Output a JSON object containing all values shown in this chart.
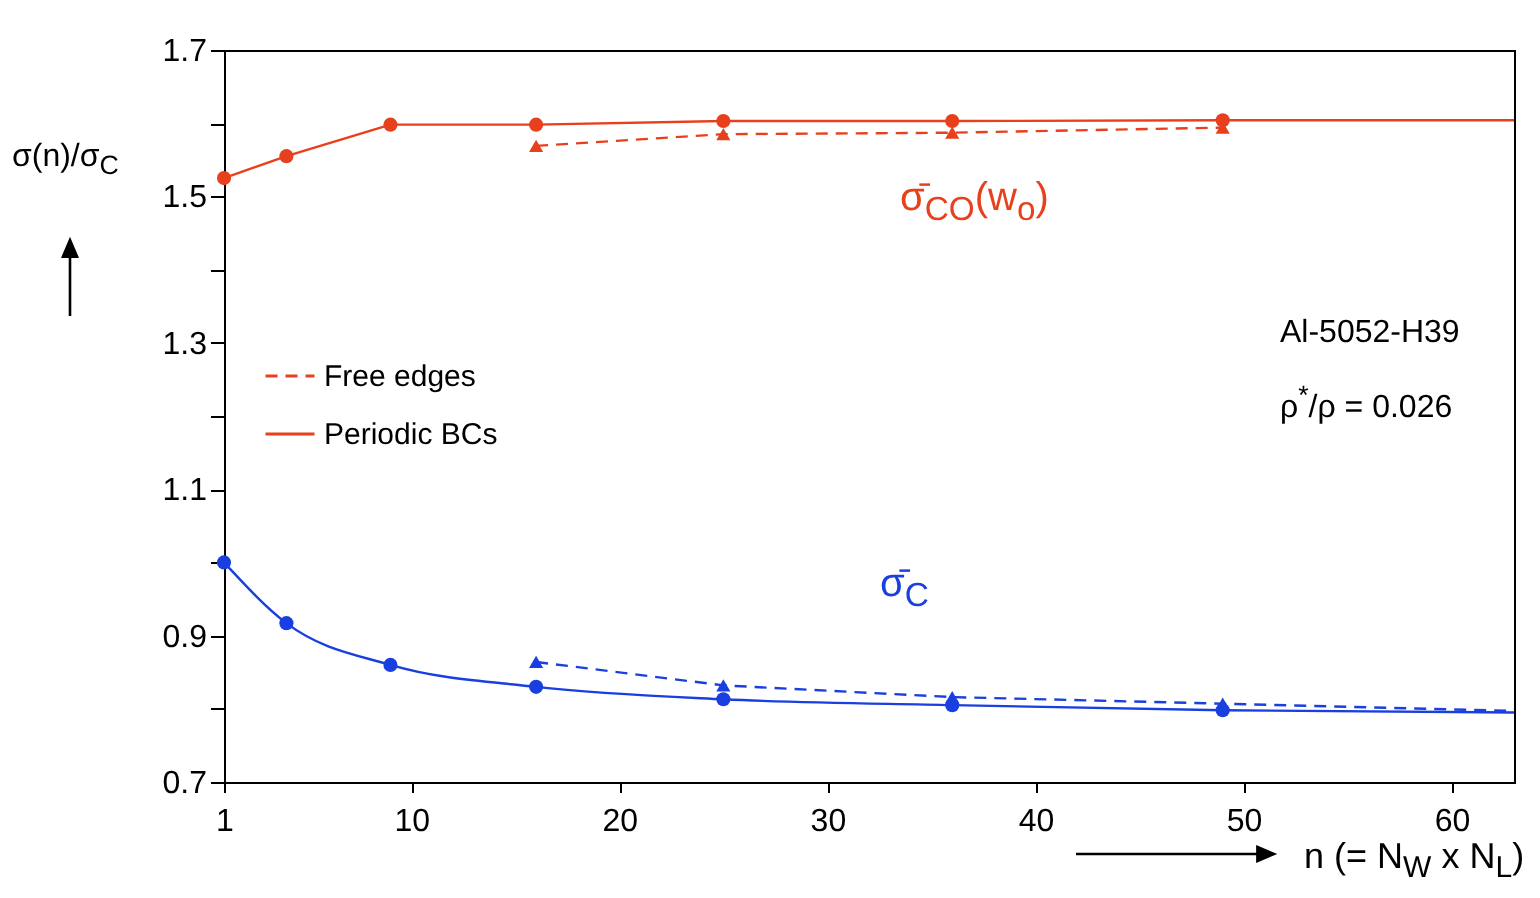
{
  "chart_data": {
    "type": "line",
    "xlabel": "n (= N$_{W}$ x N$_{L}$)",
    "ylabel": "σ(n)/σ$_{C}$",
    "xlim": [
      1,
      63
    ],
    "xticks": [
      1,
      10,
      20,
      30,
      40,
      50,
      60
    ],
    "ylim": [
      0.7,
      1.7
    ],
    "yticks": [
      0.7,
      {
        "value": 0.8,
        "label": null
      },
      0.9,
      {
        "value": 1.0,
        "label": null
      },
      1.1,
      {
        "value": 1.2,
        "label": null
      },
      1.3,
      {
        "value": 1.4,
        "label": null
      },
      1.5,
      {
        "value": 1.6,
        "label": null
      },
      1.7
    ],
    "legend": "left",
    "grid": false,
    "series": [
      {
        "name": "Free edges",
        "color": "#e8401c",
        "line_style": "dashed",
        "marker": "triangle",
        "x": [
          16,
          25,
          36,
          49
        ],
        "values": [
          1.569,
          1.585,
          1.587,
          1.594
        ]
      },
      {
        "name": "Periodic BCs",
        "color": "#e8401c",
        "line_style": "solid",
        "marker": "circle",
        "x": [
          1,
          4,
          9,
          16,
          25,
          36,
          49,
          63
        ],
        "values": [
          1.525,
          1.555,
          1.598,
          1.598,
          1.603,
          1.603,
          1.604,
          1.604
        ]
      },
      {
        "color": "#1a3fe0",
        "line_style": "dashed",
        "marker": "triangle",
        "x": [
          16,
          25,
          36,
          49,
          63
        ],
        "values": [
          0.864,
          0.832,
          0.816,
          0.807,
          0.797
        ]
      },
      {
        "color": "#1a3fe0",
        "line_style": "solid",
        "marker": "circle",
        "x": [
          1,
          4,
          9,
          16,
          25,
          36,
          49,
          63
        ],
        "values": [
          1.0,
          0.917,
          0.86,
          0.83,
          0.813,
          0.805,
          0.798,
          0.795
        ]
      }
    ],
    "annotations": [
      "σ̄$_{CO}$(w$_{o}$)",
      "σ̄$_{C}$",
      "Al-5052-H39",
      "ρ$^{*}$/ρ = 0.026"
    ]
  }
}
